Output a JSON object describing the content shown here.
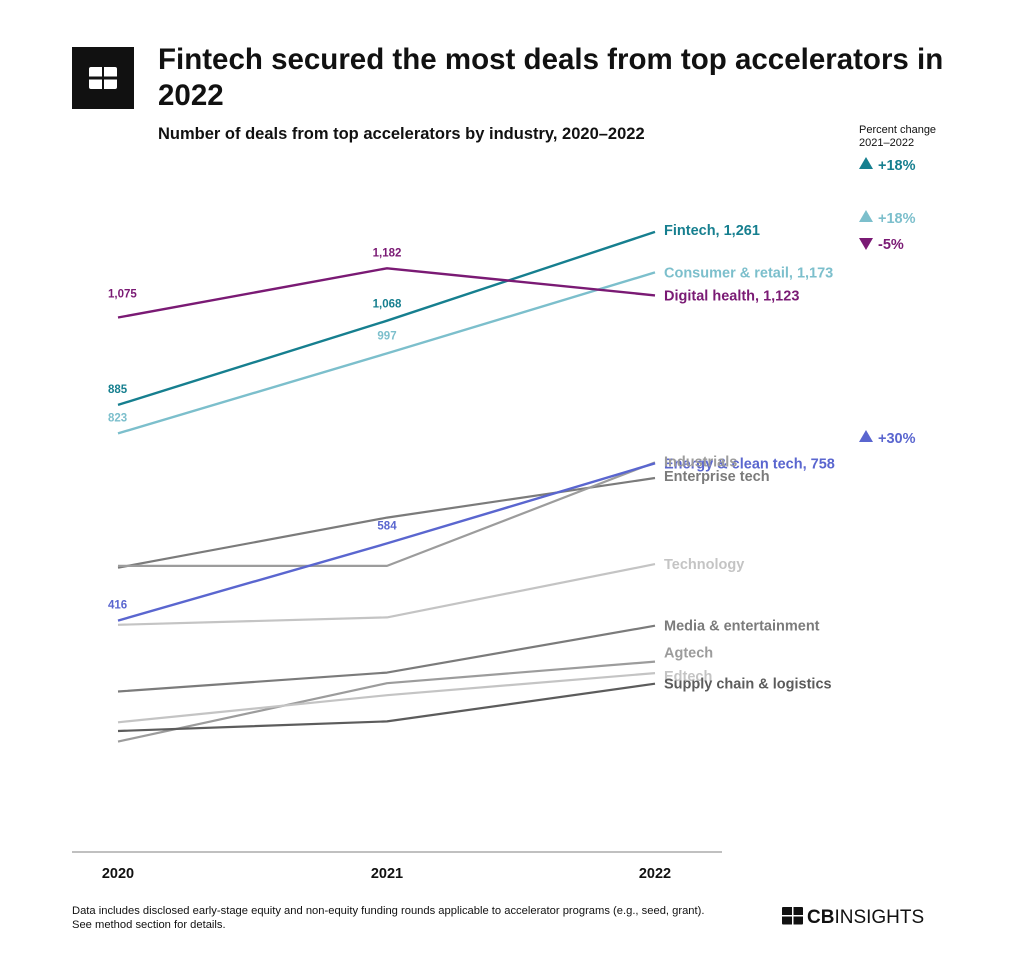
{
  "header": {
    "title": "Fintech secured the most deals from top accelerators in 2022",
    "subtitle": "Number of deals from top accelerators by industry, 2020–2022",
    "percent_change_label_line1": "Percent change",
    "percent_change_label_line2": "2021–2022"
  },
  "footer": {
    "note": "Data includes disclosed early-stage equity and non-equity funding rounds applicable to accelerator programs (e.g., seed, grant). See method section for details.",
    "brand": "CBINSIGHTS"
  },
  "chart_data": {
    "type": "line",
    "title": "Fintech secured the most deals from top accelerators in 2022",
    "subtitle": "Number of deals from top accelerators by industry, 2020–2022",
    "x": [
      "2020",
      "2021",
      "2022"
    ],
    "ylim": [
      -100,
      1400
    ],
    "grid": false,
    "series": [
      {
        "name": "Fintech",
        "label": "Fintech, 1,261",
        "values": [
          885,
          1068,
          1261
        ],
        "color": "#167f8f",
        "point_labels": [
          "885",
          "1,068",
          ""
        ],
        "change": "+18%",
        "direction": "up",
        "highlight": true
      },
      {
        "name": "Consumer & retail",
        "label": "Consumer & retail, 1,173",
        "values": [
          823,
          997,
          1173
        ],
        "color": "#7cbfcc",
        "point_labels": [
          "823",
          "997",
          ""
        ],
        "change": "+18%",
        "direction": "up",
        "highlight": true
      },
      {
        "name": "Digital health",
        "label": "Digital health, 1,123",
        "values": [
          1075,
          1182,
          1123
        ],
        "color": "#7a1a74",
        "point_labels": [
          "1,075",
          "1,182",
          ""
        ],
        "change": "-5%",
        "direction": "down",
        "highlight": true
      },
      {
        "name": "Energy & clean tech",
        "label": "Energy & clean tech, 758",
        "values": [
          416,
          584,
          758
        ],
        "color": "#5a66cf",
        "point_labels": [
          "416",
          "584",
          ""
        ],
        "change": "+30%",
        "direction": "up",
        "highlight": true
      },
      {
        "name": "Enterprise tech",
        "label": "Enterprise tech",
        "values": [
          531,
          640,
          726
        ],
        "color": "#7b7b7b"
      },
      {
        "name": "Industrials",
        "label": "Industrials",
        "values": [
          535,
          535,
          760
        ],
        "color": "#9c9c9c"
      },
      {
        "name": "Technology",
        "label": "Technology",
        "values": [
          407,
          423,
          539
        ],
        "color": "#c4c4c4"
      },
      {
        "name": "Media & entertainment",
        "label": "Media & entertainment",
        "values": [
          262,
          303,
          405
        ],
        "color": "#7b7b7b"
      },
      {
        "name": "Agtech",
        "label": "Agtech",
        "values": [
          153,
          280,
          327
        ],
        "color": "#9c9c9c"
      },
      {
        "name": "Edtech",
        "label": "Edtech",
        "values": [
          195,
          254,
          302
        ],
        "color": "#c4c4c4"
      },
      {
        "name": "Supply chain & logistics",
        "label": "Supply chain & logistics",
        "values": [
          176,
          197,
          279
        ],
        "color": "#5c5c5c"
      }
    ]
  }
}
